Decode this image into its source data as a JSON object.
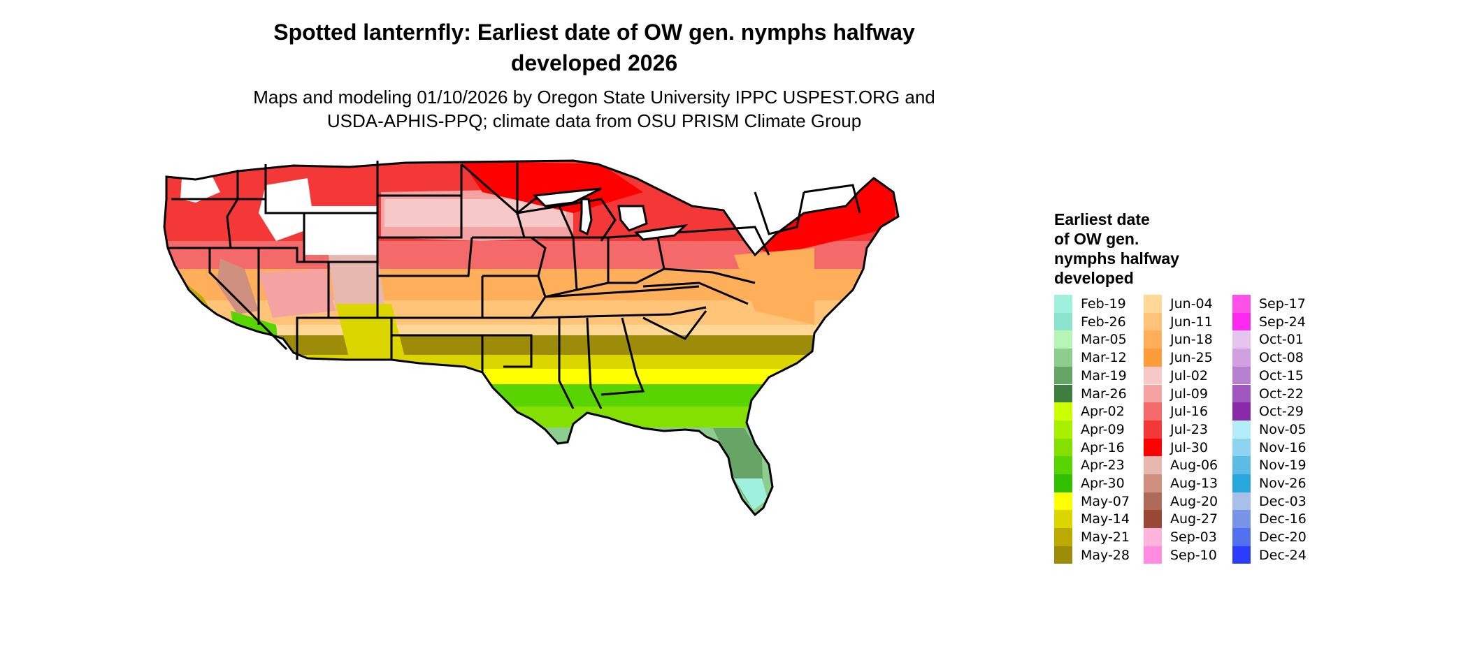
{
  "title": {
    "line1": "Spotted lanternfly: Earliest date of OW gen. nymphs halfway",
    "line2": "developed 2026"
  },
  "subtitle": {
    "line1": "Maps and modeling 01/10/2026 by Oregon State University IPPC USPEST.ORG and",
    "line2": "USDA-APHIS-PPQ; climate data from OSU PRISM Climate Group"
  },
  "legend": {
    "title_line1": "Earliest date",
    "title_line2": "of OW gen.",
    "title_line3": "nymphs halfway",
    "title_line4": "developed",
    "columns": [
      [
        {
          "label": "Feb-19",
          "color": "#9ff0dc"
        },
        {
          "label": "Feb-26",
          "color": "#8ce4cf"
        },
        {
          "label": "Mar-05",
          "color": "#b6f5b6"
        },
        {
          "label": "Mar-12",
          "color": "#8dcd8d"
        },
        {
          "label": "Mar-19",
          "color": "#66a566"
        },
        {
          "label": "Mar-26",
          "color": "#3e7e3e"
        },
        {
          "label": "Apr-02",
          "color": "#ccff00"
        },
        {
          "label": "Apr-09",
          "color": "#a8f000"
        },
        {
          "label": "Apr-16",
          "color": "#84e000"
        },
        {
          "label": "Apr-23",
          "color": "#58d400"
        },
        {
          "label": "Apr-30",
          "color": "#30c000"
        },
        {
          "label": "May-07",
          "color": "#ffff00"
        },
        {
          "label": "May-14",
          "color": "#dcd600"
        },
        {
          "label": "May-21",
          "color": "#bcaa00"
        },
        {
          "label": "May-28",
          "color": "#9c8c0a"
        }
      ],
      [
        {
          "label": "Jun-04",
          "color": "#ffd898"
        },
        {
          "label": "Jun-11",
          "color": "#ffc478"
        },
        {
          "label": "Jun-18",
          "color": "#ffae5a"
        },
        {
          "label": "Jun-25",
          "color": "#ff9c3a"
        },
        {
          "label": "Jul-02",
          "color": "#f6c8c8"
        },
        {
          "label": "Jul-09",
          "color": "#f4a2a2"
        },
        {
          "label": "Jul-16",
          "color": "#f46a6a"
        },
        {
          "label": "Jul-23",
          "color": "#f43838"
        },
        {
          "label": "Jul-30",
          "color": "#ff0000"
        },
        {
          "label": "Aug-06",
          "color": "#e6b8b0"
        },
        {
          "label": "Aug-13",
          "color": "#d09080"
        },
        {
          "label": "Aug-20",
          "color": "#b06a5a"
        },
        {
          "label": "Aug-27",
          "color": "#984834"
        },
        {
          "label": "Sep-03",
          "color": "#ffb4dc"
        },
        {
          "label": "Sep-10",
          "color": "#ff8ce0"
        }
      ],
      [
        {
          "label": "Sep-17",
          "color": "#ff50e8"
        },
        {
          "label": "Sep-24",
          "color": "#ff28f0"
        },
        {
          "label": "Oct-01",
          "color": "#e6c4f0"
        },
        {
          "label": "Oct-08",
          "color": "#d0a0e0"
        },
        {
          "label": "Oct-15",
          "color": "#b880d0"
        },
        {
          "label": "Oct-22",
          "color": "#a058c0"
        },
        {
          "label": "Oct-29",
          "color": "#8a2aaa"
        },
        {
          "label": "Nov-05",
          "color": "#b4ecfa"
        },
        {
          "label": "Nov-16",
          "color": "#8cd4f0"
        },
        {
          "label": "Nov-19",
          "color": "#5cbce6"
        },
        {
          "label": "Nov-26",
          "color": "#28a8dc"
        },
        {
          "label": "Dec-03",
          "color": "#a8c0e8"
        },
        {
          "label": "Dec-16",
          "color": "#7894e6"
        },
        {
          "label": "Dec-20",
          "color": "#5070f0"
        },
        {
          "label": "Dec-24",
          "color": "#2a3cff"
        }
      ]
    ]
  }
}
